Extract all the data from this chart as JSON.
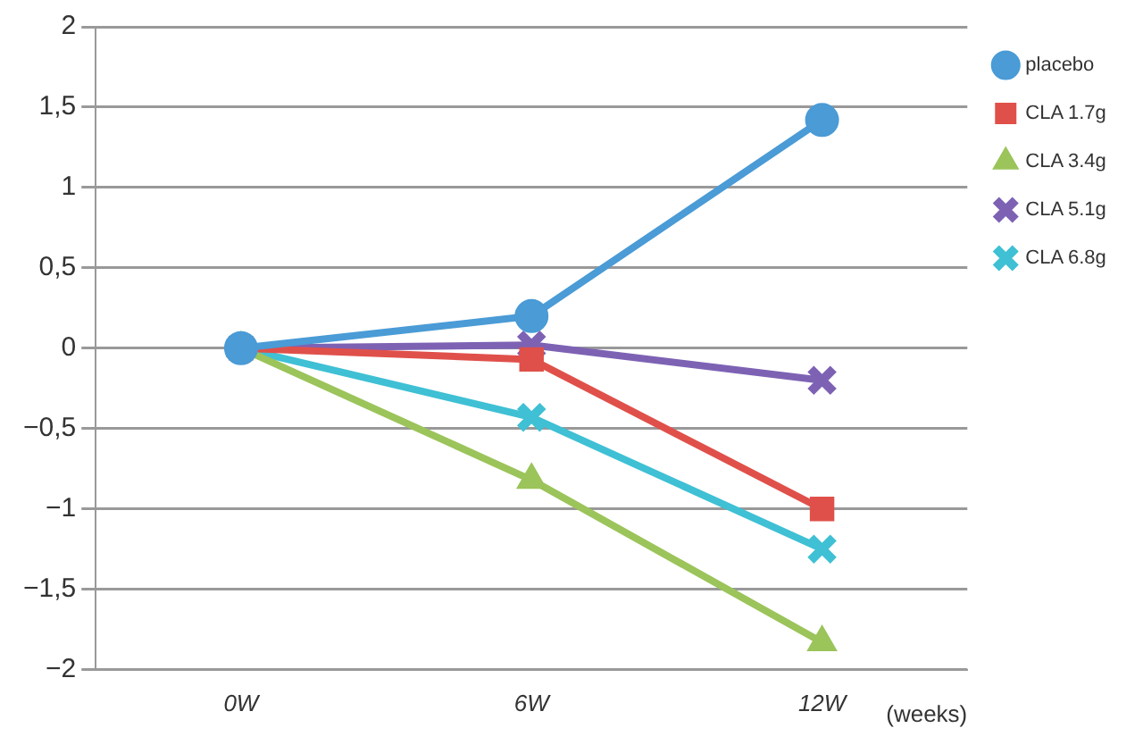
{
  "chart_data": {
    "type": "line",
    "categories": [
      "0W",
      "6W",
      "12W"
    ],
    "xlabel": "(weeks)",
    "series": [
      {
        "name": "placebo",
        "color": "#4a9bd6",
        "marker": "circle",
        "values": [
          0,
          0.2,
          1.42
        ]
      },
      {
        "name": "CLA 1.7g",
        "color": "#e0504a",
        "marker": "square",
        "values": [
          0,
          -0.07,
          -1.0
        ]
      },
      {
        "name": "CLA 3.4g",
        "color": "#9bc45a",
        "marker": "triangle",
        "values": [
          0,
          -0.82,
          -1.83
        ]
      },
      {
        "name": "CLA 5.1g",
        "color": "#7d62b4",
        "marker": "cross",
        "values": [
          0,
          0.02,
          -0.2
        ]
      },
      {
        "name": "CLA 6.8g",
        "color": "#3fc0d4",
        "marker": "cross",
        "values": [
          0,
          -0.43,
          -1.25
        ]
      }
    ],
    "ylim": [
      -2,
      2
    ],
    "yticks": [
      {
        "value": -2,
        "label": "−2"
      },
      {
        "value": -1.5,
        "label": "−1,5"
      },
      {
        "value": -1,
        "label": "−1"
      },
      {
        "value": -0.5,
        "label": "−0,5"
      },
      0,
      {
        "value": 0.5,
        "label": "0,5"
      },
      1,
      {
        "value": 1.5,
        "label": "1,5"
      },
      2
    ],
    "grid": "y",
    "legend": "right",
    "line_style": "solid"
  }
}
